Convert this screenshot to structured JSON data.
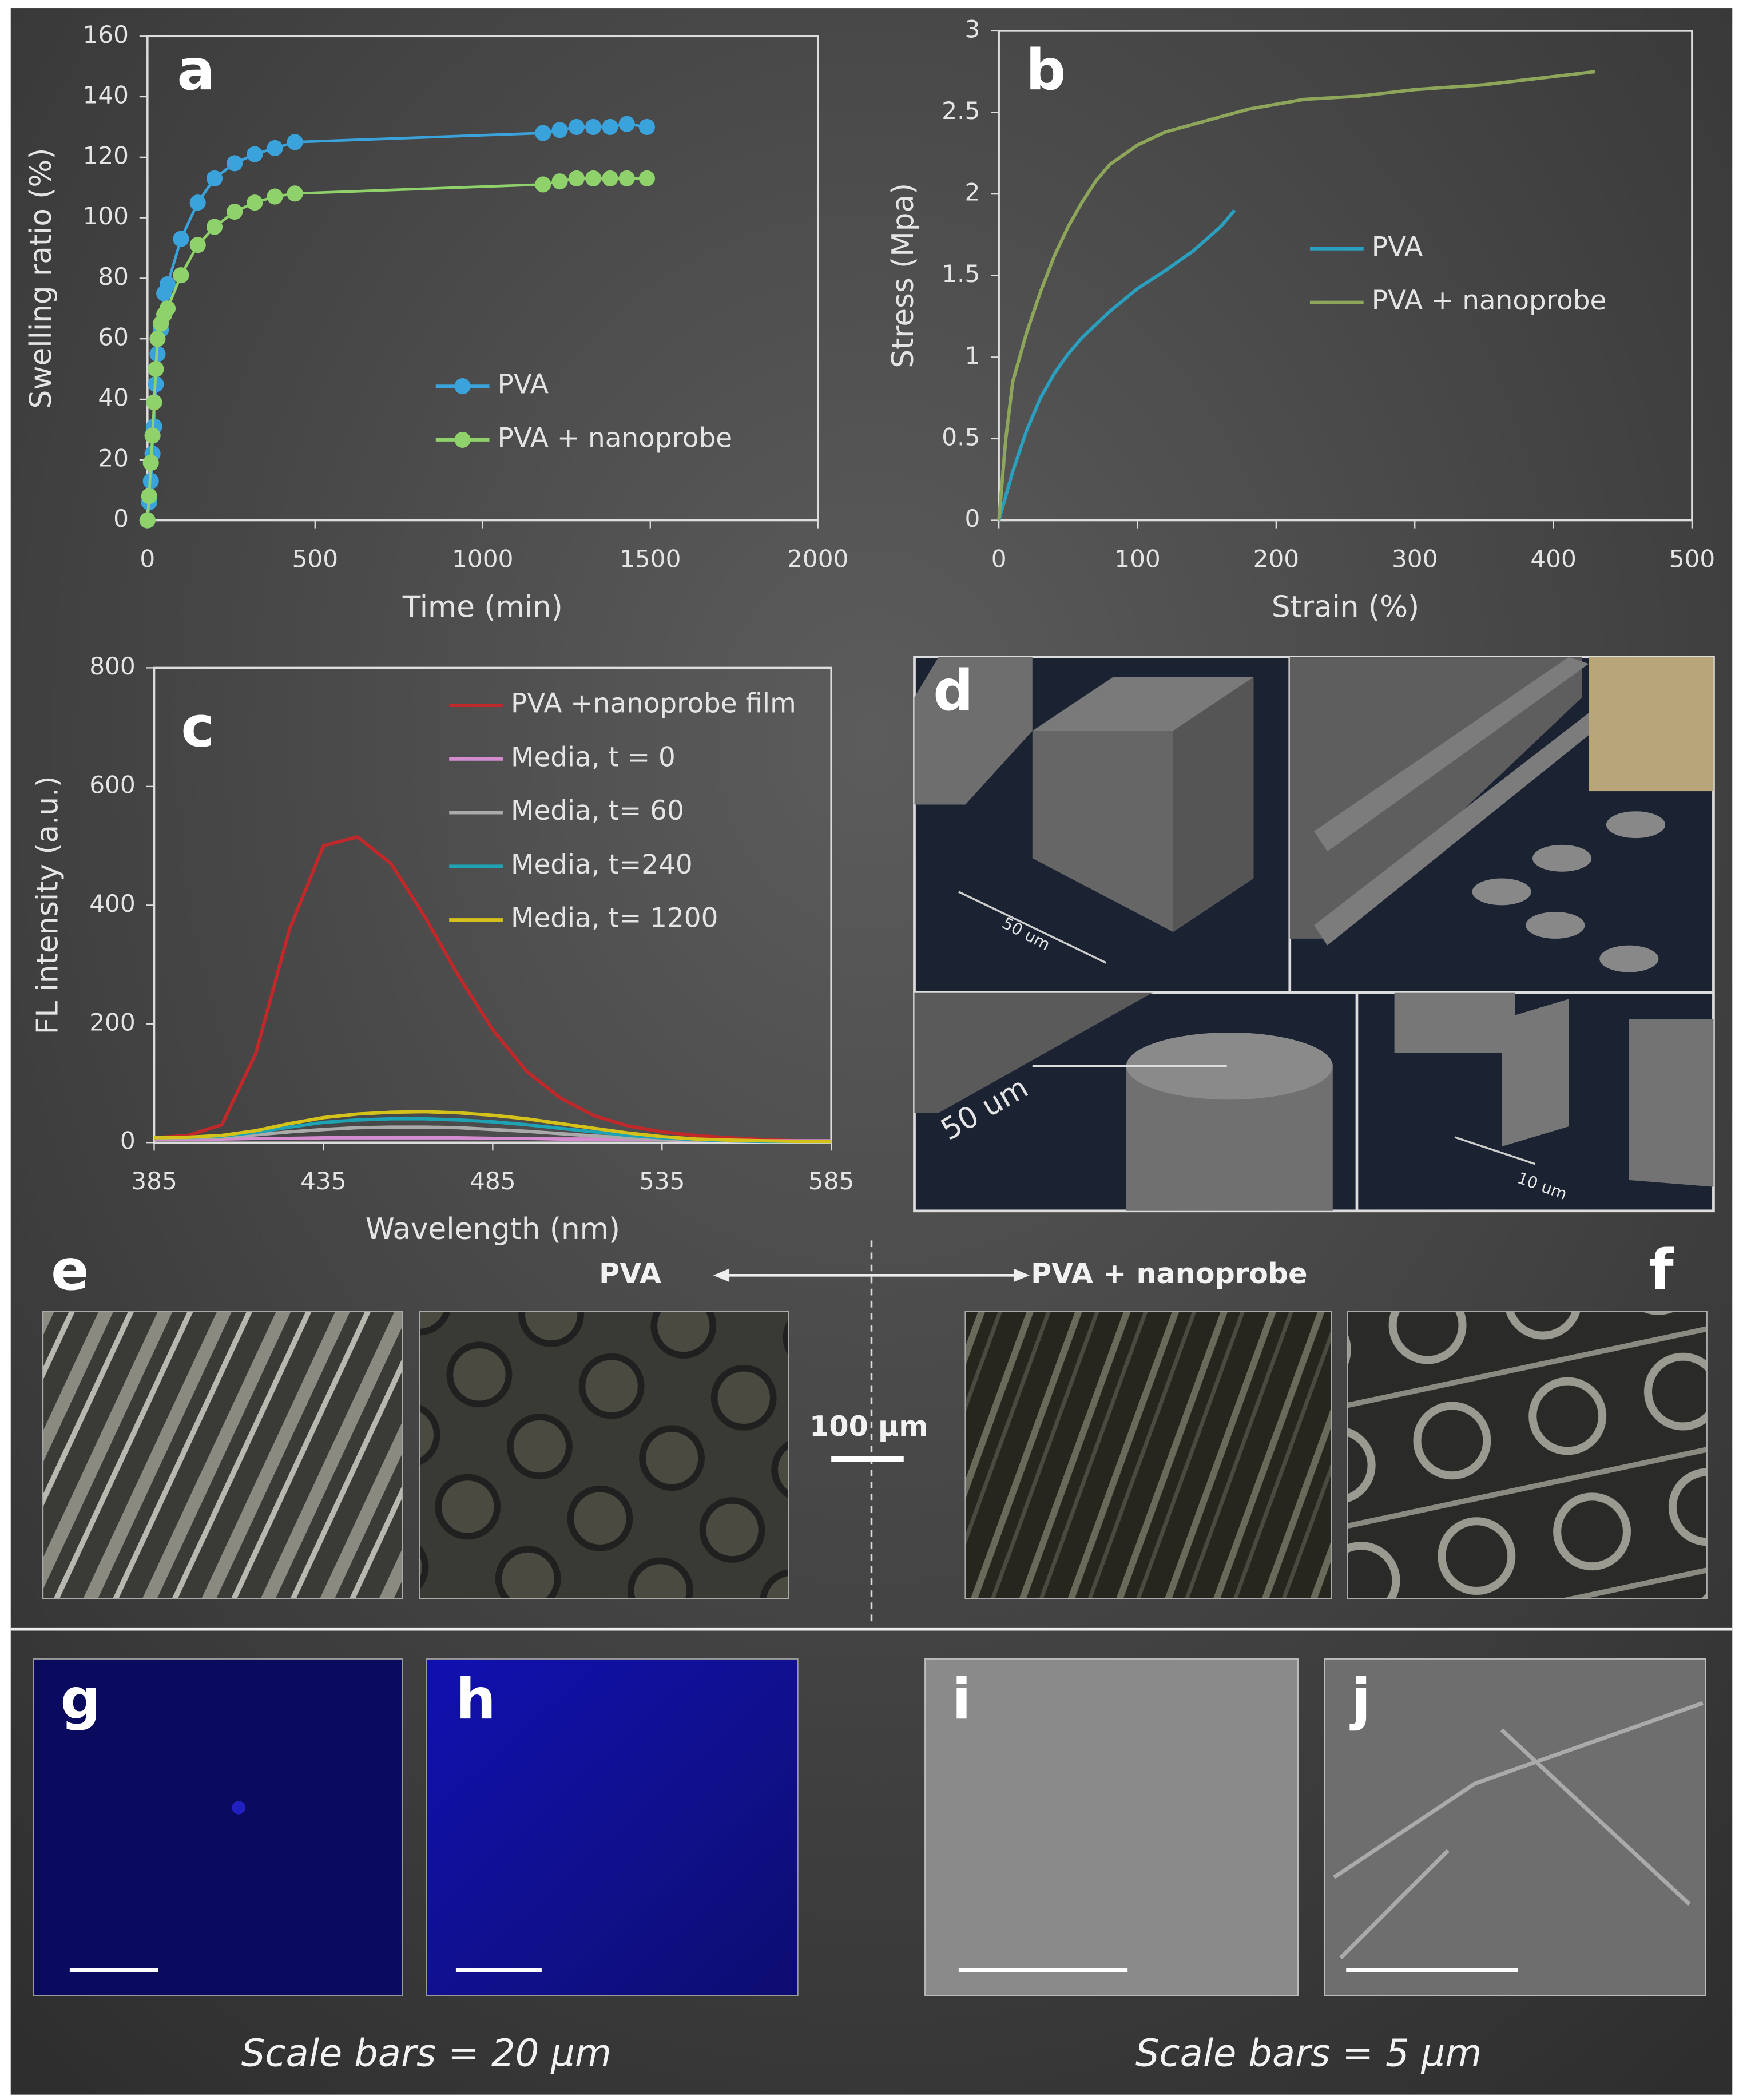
{
  "chart_data": [
    {
      "type": "line",
      "label": "a",
      "x_label": "Time (min)",
      "y_label": "Swelling ratio (%)",
      "xlim": [
        0,
        2000
      ],
      "xticks": [
        0,
        500,
        1000,
        1500,
        2000
      ],
      "ylim": [
        0,
        160
      ],
      "yticks": [
        0,
        20,
        40,
        60,
        80,
        100,
        120,
        140,
        160
      ],
      "markers": true,
      "legend": "lower right",
      "series": [
        {
          "name": "PVA",
          "color": "#3ba3dc",
          "x": [
            0,
            5,
            10,
            15,
            20,
            25,
            30,
            40,
            50,
            60,
            100,
            150,
            200,
            260,
            320,
            380,
            440,
            1180,
            1230,
            1280,
            1330,
            1380,
            1430,
            1490
          ],
          "values": [
            0,
            6,
            13,
            22,
            31,
            45,
            55,
            63,
            75,
            78,
            93,
            105,
            113,
            118,
            121,
            123,
            125,
            128,
            129,
            130,
            130,
            130,
            131,
            130
          ]
        },
        {
          "name": "PVA + nanoprobe",
          "color": "#8fd16a",
          "x": [
            0,
            5,
            10,
            15,
            20,
            25,
            30,
            40,
            50,
            60,
            100,
            150,
            200,
            260,
            320,
            380,
            440,
            1180,
            1230,
            1280,
            1330,
            1380,
            1430,
            1490
          ],
          "values": [
            0,
            8,
            19,
            28,
            39,
            50,
            60,
            65,
            68,
            70,
            81,
            91,
            97,
            102,
            105,
            107,
            108,
            111,
            112,
            113,
            113,
            113,
            113,
            113
          ]
        }
      ]
    },
    {
      "type": "line",
      "label": "b",
      "x_label": "Strain (%)",
      "y_label": "Stress (Mpa)",
      "xlim": [
        0,
        500
      ],
      "xticks": [
        0,
        100,
        200,
        300,
        400,
        500
      ],
      "ylim": [
        0,
        3
      ],
      "yticks": [
        0,
        0.5,
        1,
        1.5,
        2,
        2.5,
        3
      ],
      "markers": false,
      "legend": "center right",
      "series": [
        {
          "name": "PVA",
          "color": "#2a9fbf",
          "x": [
            0,
            10,
            20,
            30,
            40,
            50,
            60,
            80,
            100,
            120,
            140,
            160,
            170
          ],
          "values": [
            0,
            0.3,
            0.55,
            0.75,
            0.9,
            1.02,
            1.12,
            1.28,
            1.42,
            1.53,
            1.65,
            1.8,
            1.9
          ]
        },
        {
          "name": "PVA + nanoprobe",
          "color": "#8da65a",
          "x": [
            0,
            5,
            10,
            20,
            30,
            40,
            50,
            60,
            70,
            80,
            100,
            120,
            150,
            180,
            220,
            260,
            300,
            350,
            400,
            430
          ],
          "values": [
            0,
            0.5,
            0.85,
            1.15,
            1.4,
            1.62,
            1.8,
            1.95,
            2.08,
            2.18,
            2.3,
            2.38,
            2.45,
            2.52,
            2.58,
            2.6,
            2.64,
            2.67,
            2.72,
            2.75
          ]
        }
      ]
    },
    {
      "type": "line",
      "label": "c",
      "x_label": "Wavelength (nm)",
      "y_label": "FL intensity (a.u.)",
      "xlim": [
        385,
        585
      ],
      "xticks": [
        385,
        435,
        485,
        535,
        585
      ],
      "ylim": [
        0,
        800
      ],
      "yticks": [
        0,
        200,
        400,
        600,
        800
      ],
      "markers": false,
      "legend": "upper right",
      "x": [
        385,
        395,
        405,
        415,
        425,
        435,
        445,
        455,
        465,
        475,
        485,
        495,
        505,
        515,
        525,
        535,
        545,
        555,
        565,
        575,
        585
      ],
      "series": [
        {
          "name": "PVA +nanoprobe film",
          "color": "#c0282a",
          "values": [
            8,
            12,
            30,
            150,
            360,
            500,
            515,
            470,
            380,
            280,
            190,
            120,
            75,
            45,
            28,
            18,
            12,
            8,
            5,
            3,
            2
          ]
        },
        {
          "name": "Media, t = 0",
          "color": "#d58bd0",
          "values": [
            6,
            6,
            6,
            7,
            7,
            8,
            8,
            8,
            8,
            8,
            7,
            7,
            6,
            6,
            5,
            5,
            4,
            4,
            3,
            3,
            3
          ]
        },
        {
          "name": "Media, t= 60",
          "color": "#aaaaaa",
          "values": [
            8,
            8,
            9,
            13,
            18,
            22,
            25,
            26,
            26,
            25,
            22,
            19,
            15,
            11,
            8,
            6,
            4,
            3,
            2,
            2,
            2
          ]
        },
        {
          "name": "Media, t=240",
          "color": "#1ea3b5",
          "values": [
            8,
            9,
            11,
            17,
            26,
            34,
            38,
            40,
            40,
            38,
            35,
            30,
            24,
            18,
            12,
            8,
            5,
            3,
            2,
            2,
            2
          ]
        },
        {
          "name": "Media, t= 1200",
          "color": "#d4c21a",
          "values": [
            8,
            9,
            12,
            20,
            32,
            42,
            48,
            51,
            52,
            50,
            46,
            40,
            32,
            24,
            16,
            10,
            6,
            4,
            3,
            2,
            2
          ]
        }
      ]
    }
  ],
  "panels": {
    "d": {
      "label": "d",
      "dims": [
        "50 um",
        "50 um",
        "10 um"
      ]
    },
    "e": {
      "label": "e"
    },
    "f": {
      "label": "f"
    },
    "g": {
      "label": "g"
    },
    "h": {
      "label": "h"
    },
    "i": {
      "label": "i"
    },
    "j": {
      "label": "j"
    }
  },
  "comparison": {
    "left": "PVA",
    "right": "PVA + nanoprobe",
    "scale": "100 µm"
  },
  "footer": {
    "left": "Scale bars = 20 µm",
    "right": "Scale bars = 5 µm"
  }
}
